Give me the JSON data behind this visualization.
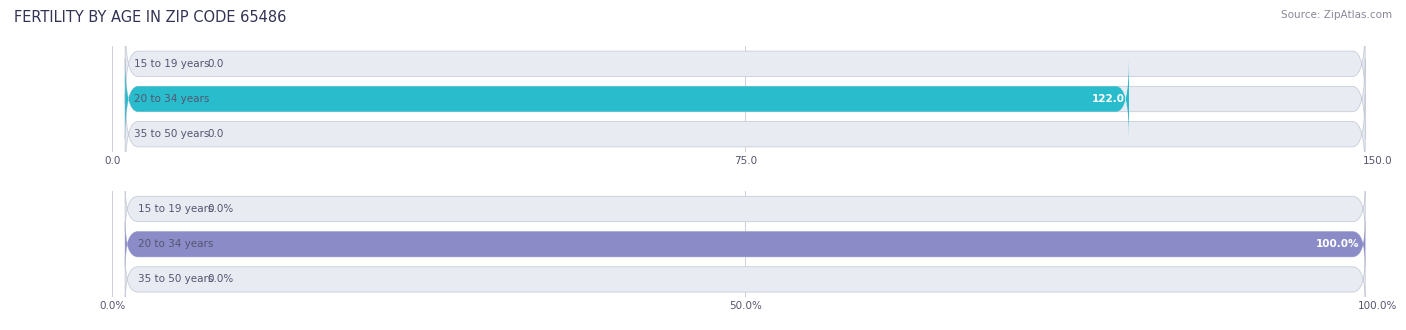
{
  "title": "FERTILITY BY AGE IN ZIP CODE 65486",
  "source": "Source: ZipAtlas.com",
  "categories": [
    "15 to 19 years",
    "20 to 34 years",
    "35 to 50 years"
  ],
  "counts": [
    0.0,
    122.0,
    0.0
  ],
  "percentages": [
    0.0,
    100.0,
    0.0
  ],
  "count_xlim": [
    0,
    150.0
  ],
  "count_xticks": [
    0.0,
    75.0,
    150.0
  ],
  "pct_xlim": [
    0,
    100.0
  ],
  "pct_xticks": [
    0.0,
    50.0,
    100.0
  ],
  "bar_color_count": "#29BCCC",
  "bar_color_pct": "#8B8BC8",
  "bar_bg_color": "#E8ECF2",
  "bar_border_color": "#C8CCD8",
  "label_color_dark": "#555570",
  "label_color_white": "#FFFFFF",
  "title_color": "#333355",
  "source_color": "#888899",
  "title_fontsize": 10.5,
  "label_fontsize": 7.5,
  "tick_fontsize": 7.5,
  "source_fontsize": 7.5,
  "bar_height": 0.72,
  "background_color": "#FFFFFF"
}
